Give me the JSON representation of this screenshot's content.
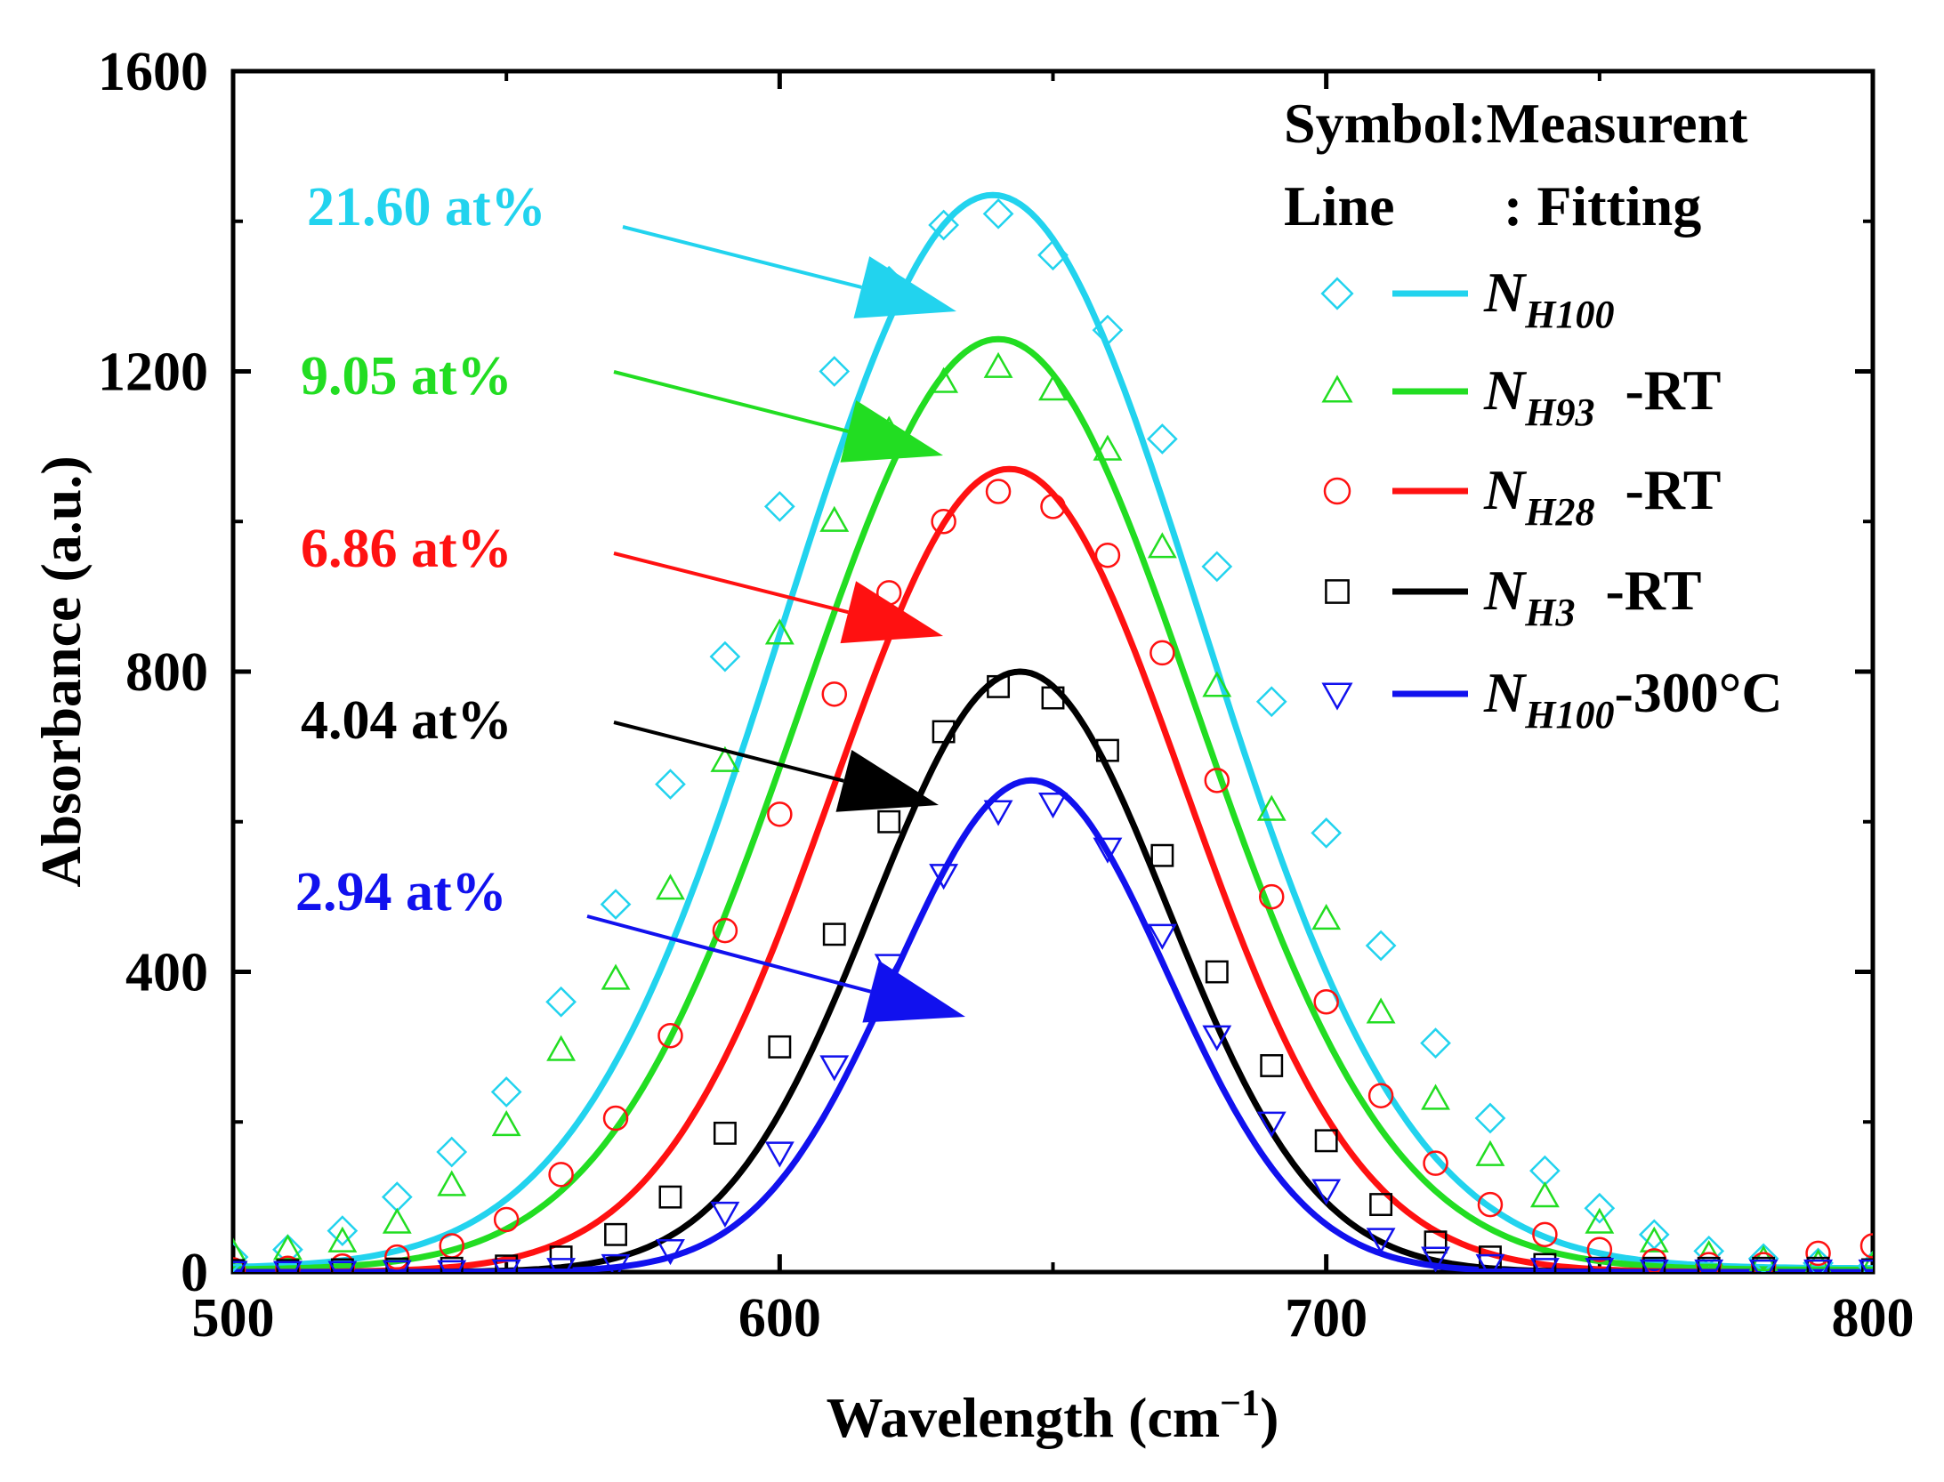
{
  "chart_data": {
    "type": "scatter",
    "title": "",
    "xlabel": "Wavelength (cm",
    "xlabel_superscript": "−1",
    "xlabel_suffix": ")",
    "ylabel": "Absorbance (a.u.)",
    "xlim": [
      500,
      800
    ],
    "ylim": [
      0,
      1600
    ],
    "xticks": [
      500,
      600,
      700,
      800
    ],
    "yticks": [
      0,
      400,
      800,
      1200,
      1600
    ],
    "x": [
      500,
      510,
      520,
      530,
      540,
      550,
      560,
      570,
      580,
      590,
      600,
      610,
      620,
      630,
      640,
      650,
      660,
      670,
      680,
      690,
      700,
      710,
      720,
      730,
      740,
      750,
      760,
      770,
      780,
      790,
      800
    ],
    "series": [
      {
        "name": "NH100",
        "subscript": "H100",
        "suffix": "",
        "color": "#22d3ee",
        "marker": "diamond",
        "fit": {
          "amp": 1430,
          "center": 639,
          "sigma": 38,
          "base": 5
        },
        "values": [
          20,
          30,
          55,
          100,
          160,
          240,
          360,
          490,
          650,
          820,
          1020,
          1200,
          1320,
          1395,
          1410,
          1355,
          1255,
          1110,
          940,
          760,
          585,
          435,
          305,
          205,
          135,
          85,
          50,
          28,
          18,
          12,
          8
        ],
        "concentration": "21.60 at%"
      },
      {
        "name": "NH93 -RT",
        "subscript": "H93",
        "suffix": "-RT",
        "color": "#22dd22",
        "marker": "triangle-up",
        "fit": {
          "amp": 1240,
          "center": 640,
          "sigma": 36,
          "base": 3
        },
        "values": [
          25,
          30,
          40,
          65,
          115,
          195,
          295,
          390,
          510,
          680,
          850,
          1000,
          1120,
          1185,
          1205,
          1175,
          1095,
          965,
          780,
          615,
          470,
          345,
          230,
          155,
          100,
          65,
          40,
          22,
          15,
          10,
          8
        ],
        "concentration": "9.05 at%"
      },
      {
        "name": "NH28 -RT",
        "subscript": "H28",
        "suffix": "-RT",
        "color": "#ff1111",
        "marker": "circle",
        "fit": {
          "amp": 1070,
          "center": 642,
          "sigma": 32,
          "base": 0
        },
        "values": [
          3,
          5,
          8,
          20,
          35,
          70,
          130,
          205,
          315,
          455,
          610,
          770,
          905,
          1000,
          1040,
          1020,
          955,
          825,
          655,
          500,
          360,
          235,
          145,
          90,
          50,
          30,
          15,
          10,
          10,
          25,
          35
        ],
        "concentration": "6.86 at%"
      },
      {
        "name": "NH3 -RT",
        "subscript": "H3",
        "suffix": "-RT",
        "color": "#000000",
        "marker": "square",
        "fit": {
          "amp": 800,
          "center": 644,
          "sigma": 27,
          "base": 0
        },
        "values": [
          2,
          2,
          3,
          4,
          5,
          8,
          20,
          50,
          100,
          185,
          300,
          450,
          600,
          720,
          780,
          765,
          695,
          555,
          400,
          275,
          175,
          90,
          40,
          20,
          10,
          5,
          5,
          5,
          5,
          5,
          3
        ],
        "concentration": "4.04 at%"
      },
      {
        "name": "NH100-300°C",
        "subscript": "H100",
        "suffix": "-300°C",
        "color": "#1111ee",
        "marker": "triangle-down",
        "fit": {
          "amp": 655,
          "center": 646,
          "sigma": 25,
          "base": 0
        },
        "values": [
          1,
          1,
          1,
          2,
          2,
          3,
          5,
          10,
          30,
          80,
          160,
          275,
          410,
          530,
          615,
          625,
          565,
          450,
          315,
          200,
          110,
          45,
          20,
          10,
          5,
          5,
          3,
          3,
          3,
          3,
          3
        ],
        "concentration": "2.94 at%"
      }
    ],
    "legend": {
      "header_line1": "Symbol:Measurent",
      "header_line2_left": "Line",
      "header_line2_right": ": Fitting",
      "letter": "N",
      "position": "top-right"
    }
  }
}
